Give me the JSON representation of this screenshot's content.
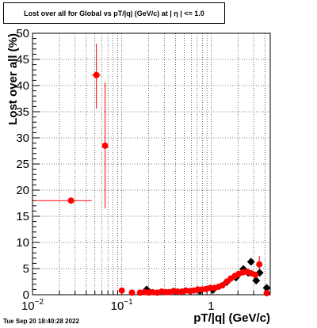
{
  "chart_data": {
    "type": "scatter",
    "title": "Lost over all for Global vs pT/|q| (GeV/c) at |  η  | <= 1.0",
    "xlabel": "pT/|q| (GeV/c)",
    "ylabel": "Lost over all (%)",
    "xscale": "log",
    "xlim": [
      0.01,
      4.6
    ],
    "ylim": [
      0,
      50
    ],
    "grid": true,
    "x_tick_labels": [
      {
        "value": 0.01,
        "base": "10",
        "exp": "−2"
      },
      {
        "value": 0.1,
        "base": "10",
        "exp": "−1"
      },
      {
        "value": 1,
        "base": "1",
        "exp": ""
      }
    ],
    "y_tick_labels": [
      "0",
      "5",
      "10",
      "15",
      "20",
      "25",
      "30",
      "35",
      "40",
      "45",
      "50"
    ],
    "series": [
      {
        "color": "#000000",
        "marker": "diamond",
        "points": [
          {
            "x": 0.19,
            "y": 1.0
          },
          {
            "x": 0.75,
            "y": 0.7
          },
          {
            "x": 1.05,
            "y": 0.9
          },
          {
            "x": 1.5,
            "y": 2.4
          },
          {
            "x": 1.9,
            "y": 3.3
          },
          {
            "x": 2.3,
            "y": 4.9
          },
          {
            "x": 2.6,
            "y": 4.2
          },
          {
            "x": 2.8,
            "y": 6.3
          },
          {
            "x": 3.2,
            "y": 2.7
          },
          {
            "x": 3.5,
            "y": 4.2
          },
          {
            "x": 4.2,
            "y": 1.3
          }
        ]
      },
      {
        "color": "#ff0000",
        "marker": "circle",
        "points": [
          {
            "x": 0.027,
            "y": 18.0,
            "xerr": [
              0.0103,
              0.046
            ],
            "yerr": [
              17.6,
              18.4
            ]
          },
          {
            "x": 0.052,
            "y": 42.0,
            "xerr": [
              0.046,
              0.058
            ],
            "yerr": [
              35.6,
              48.0
            ]
          },
          {
            "x": 0.065,
            "y": 28.5,
            "xerr": [
              0.063,
              0.067
            ],
            "yerr": [
              16.5,
              40.6
            ]
          },
          {
            "x": 0.1,
            "y": 0.8
          },
          {
            "x": 0.13,
            "y": 0.4
          },
          {
            "x": 0.16,
            "y": 0.4
          },
          {
            "x": 0.18,
            "y": 0.5
          },
          {
            "x": 0.2,
            "y": 0.4
          },
          {
            "x": 0.22,
            "y": 0.5
          },
          {
            "x": 0.25,
            "y": 0.4
          },
          {
            "x": 0.28,
            "y": 0.6
          },
          {
            "x": 0.31,
            "y": 0.5
          },
          {
            "x": 0.34,
            "y": 0.5
          },
          {
            "x": 0.38,
            "y": 0.7
          },
          {
            "x": 0.42,
            "y": 0.6
          },
          {
            "x": 0.47,
            "y": 0.6
          },
          {
            "x": 0.52,
            "y": 0.8
          },
          {
            "x": 0.58,
            "y": 0.7
          },
          {
            "x": 0.64,
            "y": 0.8
          },
          {
            "x": 0.71,
            "y": 1.0
          },
          {
            "x": 0.79,
            "y": 1.0
          },
          {
            "x": 0.88,
            "y": 1.1
          },
          {
            "x": 0.98,
            "y": 1.3
          },
          {
            "x": 1.09,
            "y": 1.3
          },
          {
            "x": 1.21,
            "y": 1.5
          },
          {
            "x": 1.34,
            "y": 1.8
          },
          {
            "x": 1.5,
            "y": 2.5
          },
          {
            "x": 1.66,
            "y": 3.1
          },
          {
            "x": 1.85,
            "y": 3.6
          },
          {
            "x": 2.05,
            "y": 4.0
          },
          {
            "x": 2.28,
            "y": 4.3
          },
          {
            "x": 2.53,
            "y": 4.4
          },
          {
            "x": 2.81,
            "y": 4.1
          },
          {
            "x": 3.12,
            "y": 3.8
          },
          {
            "x": 3.47,
            "y": 5.8,
            "yerr": [
              4.2,
              7.4
            ]
          },
          {
            "x": 4.2,
            "y": 0.3
          }
        ]
      }
    ]
  },
  "timestamp": "Tue Sep 20 18:40:28 2022"
}
